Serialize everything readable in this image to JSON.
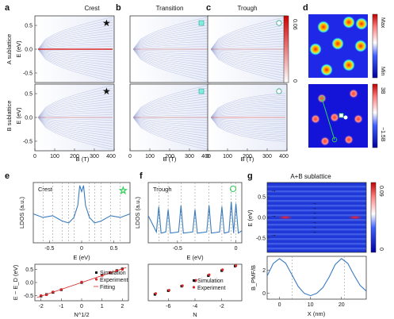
{
  "panel_letters": [
    "a",
    "b",
    "c",
    "d",
    "e",
    "f",
    "g"
  ],
  "titles": {
    "a": "Crest",
    "b": "Transition",
    "c": "Trough",
    "g": "A+B sublattice"
  },
  "row_labels": {
    "a_row1": "A sublattice",
    "a_row2": "B sublattice"
  },
  "insets": {
    "e": "Crest",
    "f": "Trough"
  },
  "labels": {
    "E_eV": "E (eV)",
    "B_T": "B (T)",
    "LDOS": "LDOS (a.u.)",
    "E_eV_x": "E (eV)",
    "e_bottom_y": "E − E_D (eV)",
    "e_bottom_x": "N^1/2",
    "f_bottom_x": "N",
    "g_x": "X (nm)",
    "g_y_bottom": "B_PMF/B"
  },
  "colorbars": {
    "abc": {
      "max": "0.06",
      "min": "0"
    },
    "d_top": {
      "max": "Max",
      "min": "Min"
    },
    "d_bottom": {
      "max": "3B",
      "min": "−1.5B"
    },
    "g": {
      "max": "0.09",
      "min": "0"
    }
  },
  "legend": {
    "sim": "Simulation",
    "exp": "Experiment",
    "fit": "Fitting"
  },
  "colors": {
    "accent_red": "#d62728",
    "line_blue": "#3a7bbf",
    "map_blue": "#1a1adb",
    "green": "#2fd05a"
  },
  "chart_data": [
    {
      "panel": "a-c",
      "type": "heatmap",
      "xlabel": "B (T)",
      "ylabel": "E (eV)",
      "x_ticks": [
        0,
        100,
        200,
        300,
        400
      ],
      "y_ticks": [
        -0.5,
        0.0,
        0.5
      ],
      "xlim": [
        0,
        400
      ],
      "ylim": [
        -0.7,
        0.7
      ]
    },
    {
      "panel": "e-top",
      "type": "line",
      "title": "Crest",
      "xlabel": "E (eV)",
      "ylabel": "LDOS (a.u.)",
      "x_ticks": [
        -0.5,
        0,
        0.5
      ],
      "xlim": [
        -0.75,
        0.75
      ],
      "x": [
        -0.75,
        -0.6,
        -0.45,
        -0.3,
        -0.2,
        -0.12,
        -0.06,
        -0.03,
        0,
        0.03,
        0.06,
        0.12,
        0.2,
        0.3,
        0.45,
        0.6,
        0.75
      ],
      "y": [
        0.48,
        0.42,
        0.45,
        0.36,
        0.33,
        0.42,
        0.62,
        0.95,
        0.85,
        0.95,
        0.62,
        0.42,
        0.33,
        0.36,
        0.45,
        0.42,
        0.48
      ]
    },
    {
      "panel": "f-top",
      "type": "line",
      "title": "Trough",
      "xlabel": "E (eV)",
      "ylabel": "LDOS (a.u.)",
      "x_ticks": [
        -0.5,
        0
      ],
      "xlim": [
        -0.75,
        0.05
      ],
      "peaks_x": [
        -0.66,
        -0.58,
        -0.47,
        -0.35,
        -0.23,
        -0.12,
        -0.04,
        0.0
      ],
      "peaks_y": [
        0.6,
        0.55,
        0.62,
        0.55,
        0.62,
        0.6,
        0.68,
        0.65
      ]
    },
    {
      "panel": "e-bottom",
      "type": "scatter",
      "xlabel": "N^1/2",
      "ylabel": "E − E_D (eV)",
      "x_ticks": [
        -2,
        -1,
        0,
        1,
        2
      ],
      "y_ticks": [
        -0.5,
        0,
        0.5
      ],
      "xlim": [
        -2.3,
        2.3
      ],
      "ylim": [
        -0.7,
        0.7
      ],
      "series": [
        {
          "name": "Simulation",
          "x": [
            -2,
            -1.73,
            -1.41,
            -1,
            0,
            1,
            1.41,
            1.73,
            2
          ],
          "y": [
            -0.52,
            -0.46,
            -0.38,
            -0.28,
            0,
            0.28,
            0.38,
            0.46,
            0.52
          ]
        },
        {
          "name": "Experiment",
          "x": [
            -2,
            -1.73,
            -1.41,
            -1,
            0,
            1,
            1.41,
            1.73,
            2
          ],
          "y": [
            -0.5,
            -0.47,
            -0.36,
            -0.27,
            0.02,
            0.27,
            0.39,
            0.45,
            0.5
          ]
        },
        {
          "name": "Fitting",
          "x": [
            -2.2,
            2.2
          ],
          "y": [
            -0.58,
            0.58
          ]
        }
      ]
    },
    {
      "panel": "f-bottom",
      "type": "scatter",
      "xlabel": "N",
      "x_ticks": [
        -6,
        -4,
        -2
      ],
      "xlim": [
        -7.5,
        -0.5
      ],
      "ylim": [
        -0.8,
        0
      ],
      "series": [
        {
          "name": "Simulation",
          "x": [
            -7,
            -6,
            -5,
            -4,
            -3,
            -2,
            -1
          ],
          "y": [
            -0.66,
            -0.58,
            -0.48,
            -0.36,
            -0.25,
            -0.14,
            -0.04
          ]
        },
        {
          "name": "Experiment",
          "x": [
            -7,
            -6,
            -5,
            -4,
            -3,
            -2,
            -1
          ],
          "y": [
            -0.64,
            -0.57,
            -0.47,
            -0.35,
            -0.23,
            -0.12,
            -0.03
          ]
        }
      ]
    },
    {
      "panel": "g-bottom",
      "type": "line",
      "xlabel": "X (nm)",
      "ylabel": "B_PMF/B",
      "x_ticks": [
        0,
        10,
        20
      ],
      "y_ticks": [
        0,
        2
      ],
      "xlim": [
        -4,
        28
      ],
      "ylim": [
        -0.5,
        3.2
      ],
      "x": [
        -4,
        -2,
        0,
        2,
        4,
        6,
        8,
        10,
        12,
        14,
        16,
        18,
        20,
        22,
        24,
        26,
        28
      ],
      "y": [
        1.5,
        2.6,
        3.0,
        2.6,
        1.6,
        0.6,
        0.0,
        -0.2,
        0.0,
        0.5,
        1.4,
        2.5,
        3.0,
        2.6,
        1.6,
        0.7,
        0.2
      ]
    }
  ]
}
